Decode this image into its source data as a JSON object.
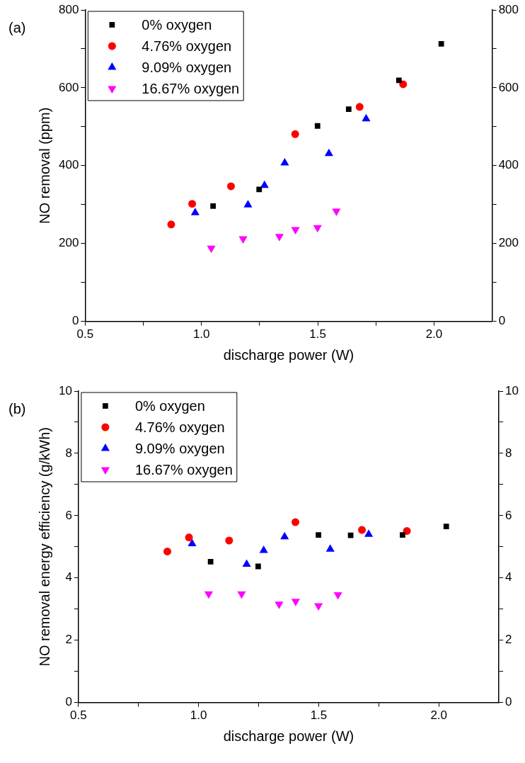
{
  "chart_data": [
    {
      "type": "scatter",
      "xlabel": "discharge power (W)",
      "ylabel": "NO removal (ppm)",
      "annotations": [
        "(a)"
      ],
      "legend": "top left",
      "grid": false,
      "xlim": [
        0.5,
        2.25
      ],
      "xticks": [
        {
          "value": 0.5,
          "label": "0.5"
        },
        {
          "value": 0.75,
          "label": null
        },
        {
          "value": 1,
          "label": "1.0"
        },
        {
          "value": 1.25,
          "label": null
        },
        {
          "value": 1.5,
          "label": "1.5"
        },
        {
          "value": 1.75,
          "label": null
        },
        {
          "value": 2,
          "label": "2.0"
        }
      ],
      "ylim": [
        0,
        800
      ],
      "yticks": [
        0,
        {
          "value": 100,
          "label": null
        },
        200,
        {
          "value": 300,
          "label": null
        },
        400,
        {
          "value": 500,
          "label": null
        },
        600,
        {
          "value": 700,
          "label": null
        },
        800
      ],
      "y2lim": [
        0,
        800
      ],
      "y2ticks": [
        0,
        {
          "value": 100,
          "label": null
        },
        200,
        {
          "value": 300,
          "label": null
        },
        400,
        {
          "value": 500,
          "label": null
        },
        600,
        {
          "value": 700,
          "label": null
        },
        800
      ],
      "series": [
        {
          "name": "0% oxygen",
          "color": "#000000",
          "marker": "square",
          "x": [
            1.05,
            1.248,
            1.499,
            1.633,
            1.849,
            2.031
          ],
          "values": [
            296,
            339,
            502,
            545,
            619,
            713
          ]
        },
        {
          "name": "4.76% oxygen",
          "color": "#ff0000",
          "marker": "circle",
          "x": [
            0.87,
            0.96,
            1.127,
            1.403,
            1.68,
            1.867
          ],
          "values": [
            249,
            302,
            347,
            481,
            551,
            609
          ]
        },
        {
          "name": "9.09% oxygen",
          "color": "#0000ff",
          "marker": "triangle",
          "x": [
            0.973,
            1.2,
            1.271,
            1.358,
            1.548,
            1.708
          ],
          "values": [
            279,
            299,
            349,
            407,
            431,
            520
          ]
        },
        {
          "name": "16.67% oxygen",
          "color": "#ff00ff",
          "marker": "triangle_down",
          "x": [
            1.042,
            1.179,
            1.335,
            1.404,
            1.499,
            1.58
          ],
          "values": [
            188,
            212,
            218,
            236,
            241,
            283
          ]
        }
      ]
    },
    {
      "type": "scatter",
      "xlabel": "discharge power (W)",
      "ylabel": "NO removal energy efficiency (g/kWh)",
      "annotations": [
        "(b)"
      ],
      "legend": "top left",
      "grid": false,
      "xlim": [
        0.5,
        2.25
      ],
      "xticks": [
        {
          "value": 0.5,
          "label": "0.5"
        },
        {
          "value": 0.75,
          "label": null
        },
        {
          "value": 1,
          "label": "1.0"
        },
        {
          "value": 1.25,
          "label": null
        },
        {
          "value": 1.5,
          "label": "1.5"
        },
        {
          "value": 1.75,
          "label": null
        },
        {
          "value": 2,
          "label": "2.0"
        }
      ],
      "ylim": [
        0,
        10
      ],
      "yticks": [
        0,
        {
          "value": 1,
          "label": null
        },
        2,
        {
          "value": 3,
          "label": null
        },
        4,
        {
          "value": 5,
          "label": null
        },
        6,
        {
          "value": 7,
          "label": null
        },
        8,
        {
          "value": 9,
          "label": null
        },
        10
      ],
      "y2lim": [
        0,
        10
      ],
      "y2ticks": [
        0,
        {
          "value": 1,
          "label": null
        },
        2,
        {
          "value": 3,
          "label": null
        },
        4,
        {
          "value": 5,
          "label": null
        },
        6,
        {
          "value": 7,
          "label": null
        },
        8,
        {
          "value": 9,
          "label": null
        },
        10
      ],
      "series": [
        {
          "name": "0% oxygen",
          "color": "#000000",
          "marker": "square",
          "x": [
            1.05,
            1.248,
            1.499,
            1.633,
            1.849,
            2.031
          ],
          "values": [
            4.52,
            4.37,
            5.38,
            5.37,
            5.38,
            5.65
          ]
        },
        {
          "name": "4.76% oxygen",
          "color": "#ff0000",
          "marker": "circle",
          "x": [
            0.87,
            0.96,
            1.127,
            1.403,
            1.68,
            1.867
          ],
          "values": [
            4.85,
            5.3,
            5.2,
            5.79,
            5.54,
            5.51
          ]
        },
        {
          "name": "9.09% oxygen",
          "color": "#0000ff",
          "marker": "triangle",
          "x": [
            0.973,
            1.2,
            1.271,
            1.358,
            1.548,
            1.708
          ],
          "values": [
            5.1,
            4.44,
            4.88,
            5.32,
            4.92,
            5.4
          ]
        },
        {
          "name": "16.67% oxygen",
          "color": "#ff00ff",
          "marker": "triangle_down",
          "x": [
            1.042,
            1.179,
            1.335,
            1.404,
            1.499,
            1.58
          ],
          "values": [
            3.49,
            3.49,
            3.16,
            3.25,
            3.11,
            3.46
          ]
        }
      ]
    }
  ]
}
